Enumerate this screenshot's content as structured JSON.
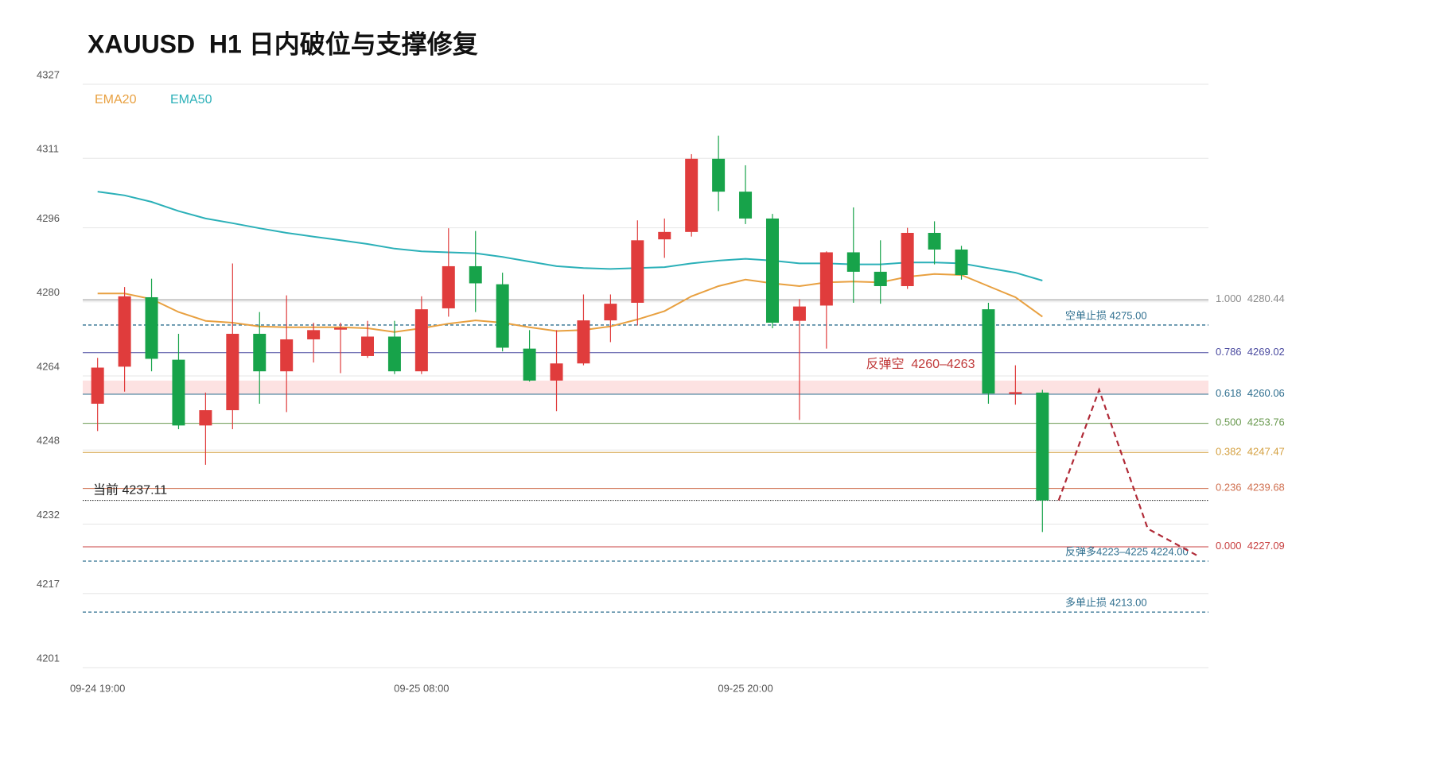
{
  "chart_data": {
    "type": "candlestick",
    "title": "XAUUSD  H1 日内破位与支撑修复",
    "categories": [
      "09-24 19:00",
      null,
      null,
      null,
      null,
      null,
      null,
      null,
      null,
      null,
      null,
      null,
      "09-25 08:00",
      null,
      null,
      null,
      null,
      null,
      null,
      null,
      null,
      null,
      null,
      null,
      "09-25 20:00",
      null,
      null,
      null,
      null,
      null,
      null,
      null,
      null,
      null,
      null,
      null
    ],
    "open": [
      4258.0,
      4266.0,
      4281.0,
      4267.5,
      4253.3,
      4256.6,
      4273.1,
      4265.0,
      4271.9,
      4274.0,
      4268.3,
      4272.5,
      4265.0,
      4278.6,
      4287.7,
      4283.8,
      4269.9,
      4263.0,
      4266.7,
      4276.0,
      4279.8,
      4293.5,
      4295.1,
      4310.9,
      4303.8,
      4298.0,
      4275.9,
      4279.2,
      4290.7,
      4286.5,
      4283.4,
      4294.9,
      4291.3,
      4278.4,
      4260.1,
      4260.4
    ],
    "high": [
      4267.9,
      4283.2,
      4285.0,
      4273.1,
      4260.4,
      4288.3,
      4277.8,
      4281.4,
      4275.5,
      4275.5,
      4275.9,
      4275.9,
      4281.2,
      4295.9,
      4295.3,
      4286.3,
      4273.9,
      4273.9,
      4281.6,
      4281.6,
      4297.6,
      4298.0,
      4311.9,
      4315.9,
      4309.5,
      4299.0,
      4280.6,
      4290.9,
      4300.4,
      4293.3,
      4296.0,
      4297.4,
      4292.1,
      4279.8,
      4266.3,
      4261.0
    ],
    "low": [
      4252.1,
      4260.6,
      4265.0,
      4252.5,
      4244.8,
      4252.5,
      4258.0,
      4256.2,
      4266.9,
      4264.6,
      4267.9,
      4264.4,
      4264.4,
      4276.8,
      4277.8,
      4269.3,
      4262.8,
      4256.4,
      4266.3,
      4271.3,
      4274.9,
      4289.5,
      4294.1,
      4299.6,
      4296.8,
      4274.3,
      4254.5,
      4269.9,
      4279.8,
      4279.6,
      4282.8,
      4288.1,
      4284.8,
      4258.0,
      4257.8,
      4230.3
    ],
    "close": [
      4265.8,
      4281.2,
      4267.7,
      4253.3,
      4256.6,
      4273.1,
      4265.0,
      4271.9,
      4273.9,
      4274.4,
      4272.5,
      4265.0,
      4278.4,
      4287.7,
      4284.0,
      4270.1,
      4263.0,
      4266.7,
      4276.0,
      4279.6,
      4293.3,
      4295.1,
      4310.9,
      4303.8,
      4298.0,
      4275.5,
      4279.0,
      4290.7,
      4286.5,
      4283.4,
      4294.9,
      4291.3,
      4285.8,
      4260.2,
      4260.5,
      4237.11
    ],
    "up_color": "#e03c3c",
    "down_color": "#17a34a",
    "ylim": [
      4201,
      4327
    ],
    "yticks": [
      4201,
      4217,
      4232,
      4248,
      4264,
      4280,
      4296,
      4311,
      4327
    ],
    "xlim": [
      -0.55,
      41.15
    ],
    "grid": true,
    "series": [
      {
        "name": "EMA20",
        "color": "#e8a040",
        "values": [
          4281.8,
          4281.8,
          4280.6,
          4277.8,
          4275.9,
          4275.5,
          4274.7,
          4274.5,
          4274.5,
          4274.5,
          4274.3,
          4273.5,
          4274.3,
          4275.3,
          4276.0,
          4275.5,
          4274.5,
          4273.7,
          4273.9,
          4274.7,
          4276.2,
          4278.0,
          4281.2,
          4283.4,
          4284.8,
          4284.0,
          4283.4,
          4284.2,
          4284.4,
          4284.2,
          4285.4,
          4286.0,
          4285.8,
          4283.4,
          4281.0,
          4276.8
        ]
      },
      {
        "name": "EMA50",
        "color": "#2bb0b8",
        "values": [
          4303.8,
          4303.0,
          4301.6,
          4299.6,
          4298.0,
          4297.0,
          4295.9,
          4294.9,
          4294.1,
          4293.3,
          4292.5,
          4291.5,
          4290.9,
          4290.7,
          4290.5,
          4289.7,
          4288.7,
          4287.7,
          4287.3,
          4287.1,
          4287.3,
          4287.5,
          4288.3,
          4288.9,
          4289.3,
          4288.9,
          4288.3,
          4288.3,
          4288.1,
          4288.1,
          4288.5,
          4288.5,
          4288.3,
          4287.3,
          4286.3,
          4284.6
        ]
      }
    ],
    "fib": [
      {
        "ratio": "1.000",
        "value": 4280.44,
        "color": "#8a8a8a"
      },
      {
        "ratio": "0.786",
        "value": 4269.02,
        "color": "#4b4ba0"
      },
      {
        "ratio": "0.618",
        "value": 4260.06,
        "color": "#2f6f8f"
      },
      {
        "ratio": "0.500",
        "value": 4253.76,
        "color": "#6a9a50"
      },
      {
        "ratio": "0.382",
        "value": 4247.47,
        "color": "#d4a040"
      },
      {
        "ratio": "0.236",
        "value": 4239.68,
        "color": "#d07050"
      },
      {
        "ratio": "0.000",
        "value": 4227.09,
        "color": "#c84040"
      }
    ],
    "levels": [
      {
        "label": "空单止损 4275.00",
        "value": 4275,
        "color": "#2f6f8f"
      },
      {
        "label": "反弹多4223–4225 4224.00",
        "value": 4224,
        "color": "#2f6f8f"
      },
      {
        "label": "多单止损 4213.00",
        "value": 4213,
        "color": "#2f6f8f"
      }
    ],
    "current": {
      "label": "当前",
      "value": 4237.11,
      "color": "#222222"
    },
    "zone": {
      "label": "反弹空  4260–4263",
      "from": 4260,
      "to": 4263,
      "color": "#fde2e2",
      "label_color": "#c03a3a"
    },
    "projection": {
      "x": [
        35.6,
        37.1,
        38.9,
        40.8
      ],
      "values": [
        4237.11,
        4261,
        4231,
        4225
      ],
      "color": "#b02a37"
    }
  }
}
